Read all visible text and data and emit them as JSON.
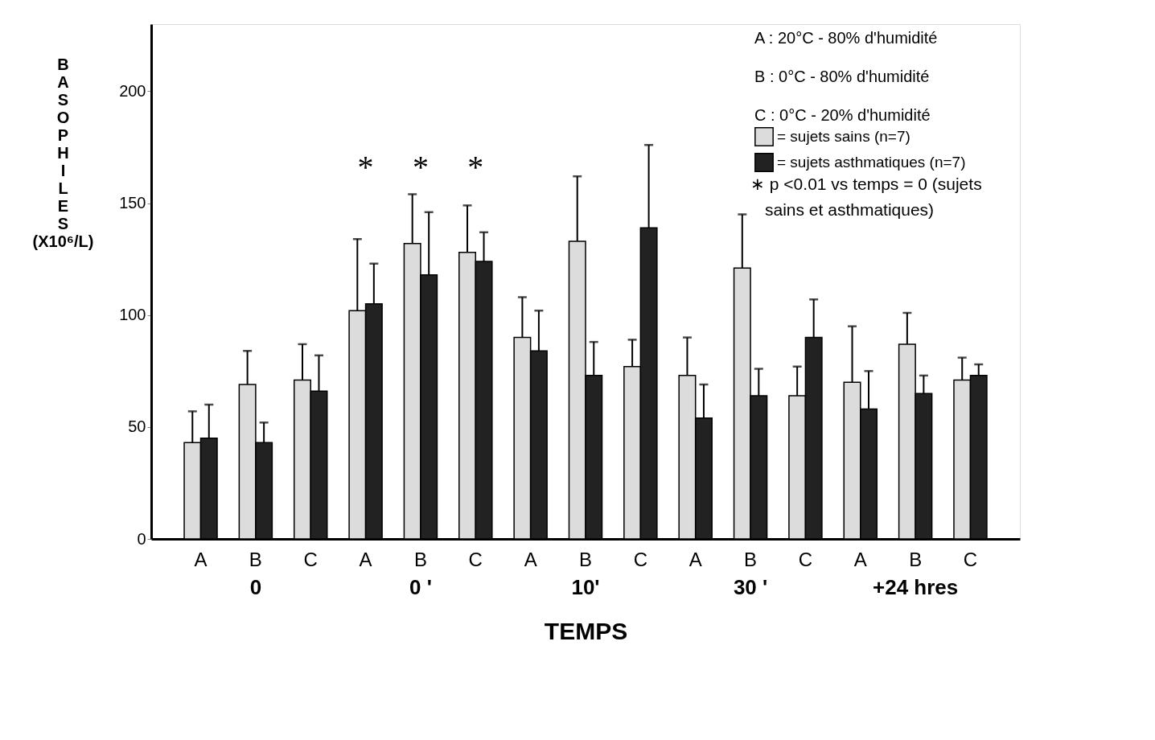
{
  "chart_data": {
    "type": "bar",
    "xlabel": "TEMPS",
    "ylabel": "BASOPHILES (X10⁶/L)",
    "categories": [
      "A",
      "B",
      "C",
      "A",
      "B",
      "C",
      "A",
      "B",
      "C",
      "A",
      "B",
      "C",
      "A",
      "B",
      "C"
    ],
    "series": [
      {
        "name": "= sujets sains  (n=7)",
        "color": "#dcdcdc",
        "values": [
          43,
          69,
          71,
          102,
          132,
          128,
          90,
          133,
          77,
          73,
          121,
          64,
          70,
          87,
          71
        ],
        "errors": [
          [
            43,
            57
          ],
          [
            69,
            84
          ],
          [
            71,
            87
          ],
          [
            102,
            134
          ],
          [
            132,
            154
          ],
          [
            128,
            149
          ],
          [
            90,
            108
          ],
          [
            133,
            162
          ],
          [
            77,
            89
          ],
          [
            73,
            90
          ],
          [
            121,
            145
          ],
          [
            64,
            77
          ],
          [
            70,
            95
          ],
          [
            87,
            101
          ],
          [
            71,
            81
          ]
        ]
      },
      {
        "name": "= sujets asthmatiques  (n=7)",
        "color": "#222222",
        "values": [
          45,
          43,
          66,
          105,
          118,
          124,
          84,
          73,
          139,
          54,
          64,
          90,
          58,
          65,
          73
        ],
        "errors": [
          [
            45,
            60
          ],
          [
            43,
            52
          ],
          [
            66,
            82
          ],
          [
            105,
            123
          ],
          [
            118,
            146
          ],
          [
            124,
            137
          ],
          [
            84,
            102
          ],
          [
            73,
            88
          ],
          [
            139,
            176
          ],
          [
            54,
            69
          ],
          [
            64,
            76
          ],
          [
            90,
            107
          ],
          [
            58,
            75
          ],
          [
            65,
            73
          ],
          [
            73,
            78
          ]
        ]
      }
    ],
    "ylim": [
      0,
      230
    ],
    "yticks": [
      0,
      50,
      100,
      150,
      200
    ],
    "grid": false,
    "legend": "top right",
    "annotations": [
      "A  :  20°C - 80% d'humidité",
      "B  :    0°C - 80% d'humidité",
      "C  :    0°C - 20% d'humidité",
      "∗ p <0.01 vs temps = 0  (sujets sains et asthmatiques)",
      "*",
      "*",
      "*",
      "0",
      "0 '",
      "10'",
      "30 '",
      "+24 hres"
    ]
  }
}
